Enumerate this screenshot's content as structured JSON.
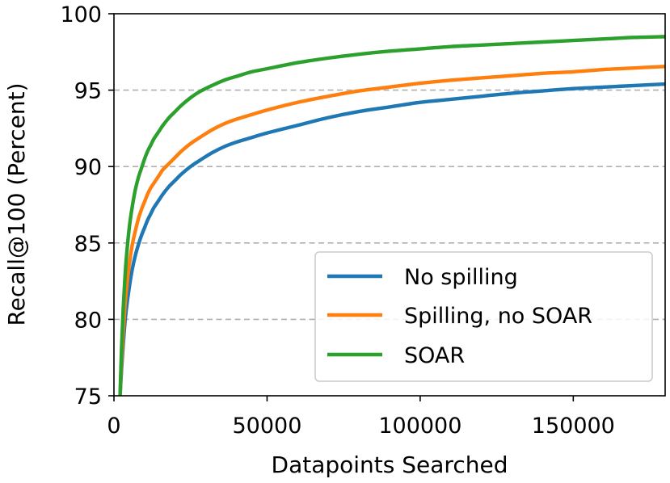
{
  "chart_data": {
    "type": "line",
    "xlabel": "Datapoints Searched",
    "ylabel": "Recall@100 (Percent)",
    "xlim": [
      0,
      180000
    ],
    "ylim": [
      75,
      100
    ],
    "x_ticks": [
      0,
      50000,
      100000,
      150000
    ],
    "x_tick_labels": [
      "0",
      "50000",
      "100000",
      "150000"
    ],
    "y_ticks": [
      75,
      80,
      85,
      90,
      95,
      100
    ],
    "y_tick_labels": [
      "75",
      "80",
      "85",
      "90",
      "95",
      "100"
    ],
    "grid": {
      "axis": "y",
      "style": "dashed",
      "lines_at": [
        80,
        85,
        90,
        95
      ]
    },
    "legend_position": "lower-right",
    "series": [
      {
        "name": "No spilling",
        "color": "#1f77b4",
        "x": [
          2000,
          2500,
          3000,
          3500,
          4000,
          5000,
          6000,
          7000,
          8000,
          9000,
          10000,
          11000,
          12000,
          13000,
          14000,
          15000,
          16000,
          18000,
          20000,
          22000,
          25000,
          28000,
          32000,
          36000,
          40000,
          45000,
          50000,
          60000,
          70000,
          80000,
          90000,
          100000,
          110000,
          120000,
          130000,
          140000,
          150000,
          160000,
          170000,
          180000
        ],
        "y": [
          75.0,
          76.8,
          78.3,
          79.6,
          80.6,
          82.1,
          83.3,
          84.2,
          84.9,
          85.5,
          86.0,
          86.5,
          86.9,
          87.3,
          87.6,
          87.9,
          88.2,
          88.7,
          89.1,
          89.5,
          90.0,
          90.4,
          90.9,
          91.3,
          91.6,
          91.9,
          92.2,
          92.7,
          93.2,
          93.6,
          93.9,
          94.2,
          94.4,
          94.6,
          94.8,
          94.95,
          95.1,
          95.2,
          95.3,
          95.4
        ]
      },
      {
        "name": "Spilling, no SOAR",
        "color": "#ff7f0e",
        "x": [
          2000,
          2500,
          3000,
          3500,
          4000,
          5000,
          6000,
          7000,
          8000,
          9000,
          10000,
          11000,
          12000,
          13000,
          14000,
          15000,
          16000,
          18000,
          20000,
          22000,
          25000,
          28000,
          32000,
          36000,
          40000,
          45000,
          50000,
          60000,
          70000,
          80000,
          90000,
          100000,
          110000,
          120000,
          130000,
          140000,
          150000,
          160000,
          170000,
          180000
        ],
        "y": [
          75.0,
          77.3,
          79.1,
          80.6,
          81.8,
          83.6,
          84.9,
          85.8,
          86.6,
          87.2,
          87.7,
          88.2,
          88.6,
          88.9,
          89.2,
          89.5,
          89.8,
          90.2,
          90.6,
          91.0,
          91.5,
          91.9,
          92.4,
          92.8,
          93.1,
          93.4,
          93.7,
          94.2,
          94.6,
          94.95,
          95.2,
          95.45,
          95.65,
          95.8,
          95.95,
          96.1,
          96.2,
          96.35,
          96.45,
          96.55
        ]
      },
      {
        "name": "SOAR",
        "color": "#2ca02c",
        "x": [
          2000,
          2500,
          3000,
          3500,
          4000,
          5000,
          6000,
          7000,
          8000,
          9000,
          10000,
          11000,
          12000,
          13000,
          14000,
          15000,
          16000,
          18000,
          20000,
          22000,
          25000,
          28000,
          32000,
          36000,
          40000,
          45000,
          50000,
          60000,
          70000,
          80000,
          90000,
          100000,
          110000,
          120000,
          130000,
          140000,
          150000,
          160000,
          170000,
          180000
        ],
        "y": [
          75.0,
          78.2,
          80.6,
          82.4,
          83.9,
          86.0,
          87.4,
          88.5,
          89.3,
          89.9,
          90.5,
          91.0,
          91.4,
          91.8,
          92.1,
          92.4,
          92.7,
          93.2,
          93.6,
          94.0,
          94.5,
          94.9,
          95.3,
          95.65,
          95.9,
          96.2,
          96.4,
          96.8,
          97.1,
          97.35,
          97.55,
          97.7,
          97.85,
          97.95,
          98.05,
          98.15,
          98.25,
          98.35,
          98.45,
          98.5
        ]
      }
    ]
  }
}
